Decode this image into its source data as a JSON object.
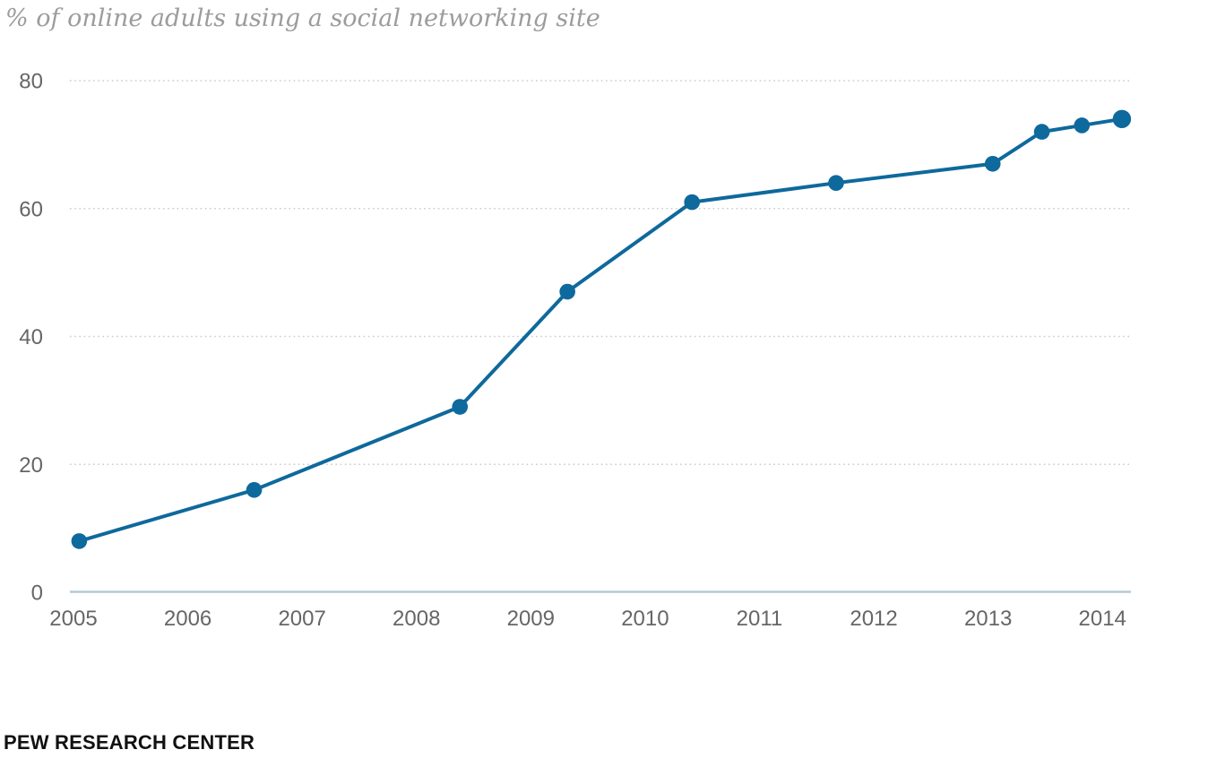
{
  "title": "% of online adults using a social networking site",
  "source": "PEW RESEARCH CENTER",
  "colors": {
    "line": "#0e699c",
    "marker": "#0e699c",
    "gridline": "#cbcbcb",
    "axis_line": "#b5c8d6",
    "tick_text": "#666666",
    "title_text": "#9c9c9c",
    "source_text": "#111111",
    "background": "#ffffff"
  },
  "chart_data": {
    "type": "line",
    "title": "% of online adults using a social networking site",
    "xlabel": "",
    "ylabel": "",
    "x": [
      2005.05,
      2006.58,
      2008.38,
      2009.32,
      2010.41,
      2011.67,
      2013.04,
      2013.47,
      2013.82,
      2014.17
    ],
    "values": [
      8,
      16,
      29,
      47,
      61,
      64,
      67,
      72,
      73,
      74
    ],
    "x_ticks": [
      2005,
      2006,
      2007,
      2008,
      2009,
      2010,
      2011,
      2012,
      2013,
      2014
    ],
    "y_ticks": [
      80,
      60,
      40,
      20,
      0
    ],
    "xlim": [
      2005,
      2014.25
    ],
    "ylim": [
      0,
      80
    ],
    "grid": "horizontal dotted gridlines at 20, 40, 60, 80; solid light baseline at 0",
    "legend_position": "none",
    "marker": "circle"
  }
}
